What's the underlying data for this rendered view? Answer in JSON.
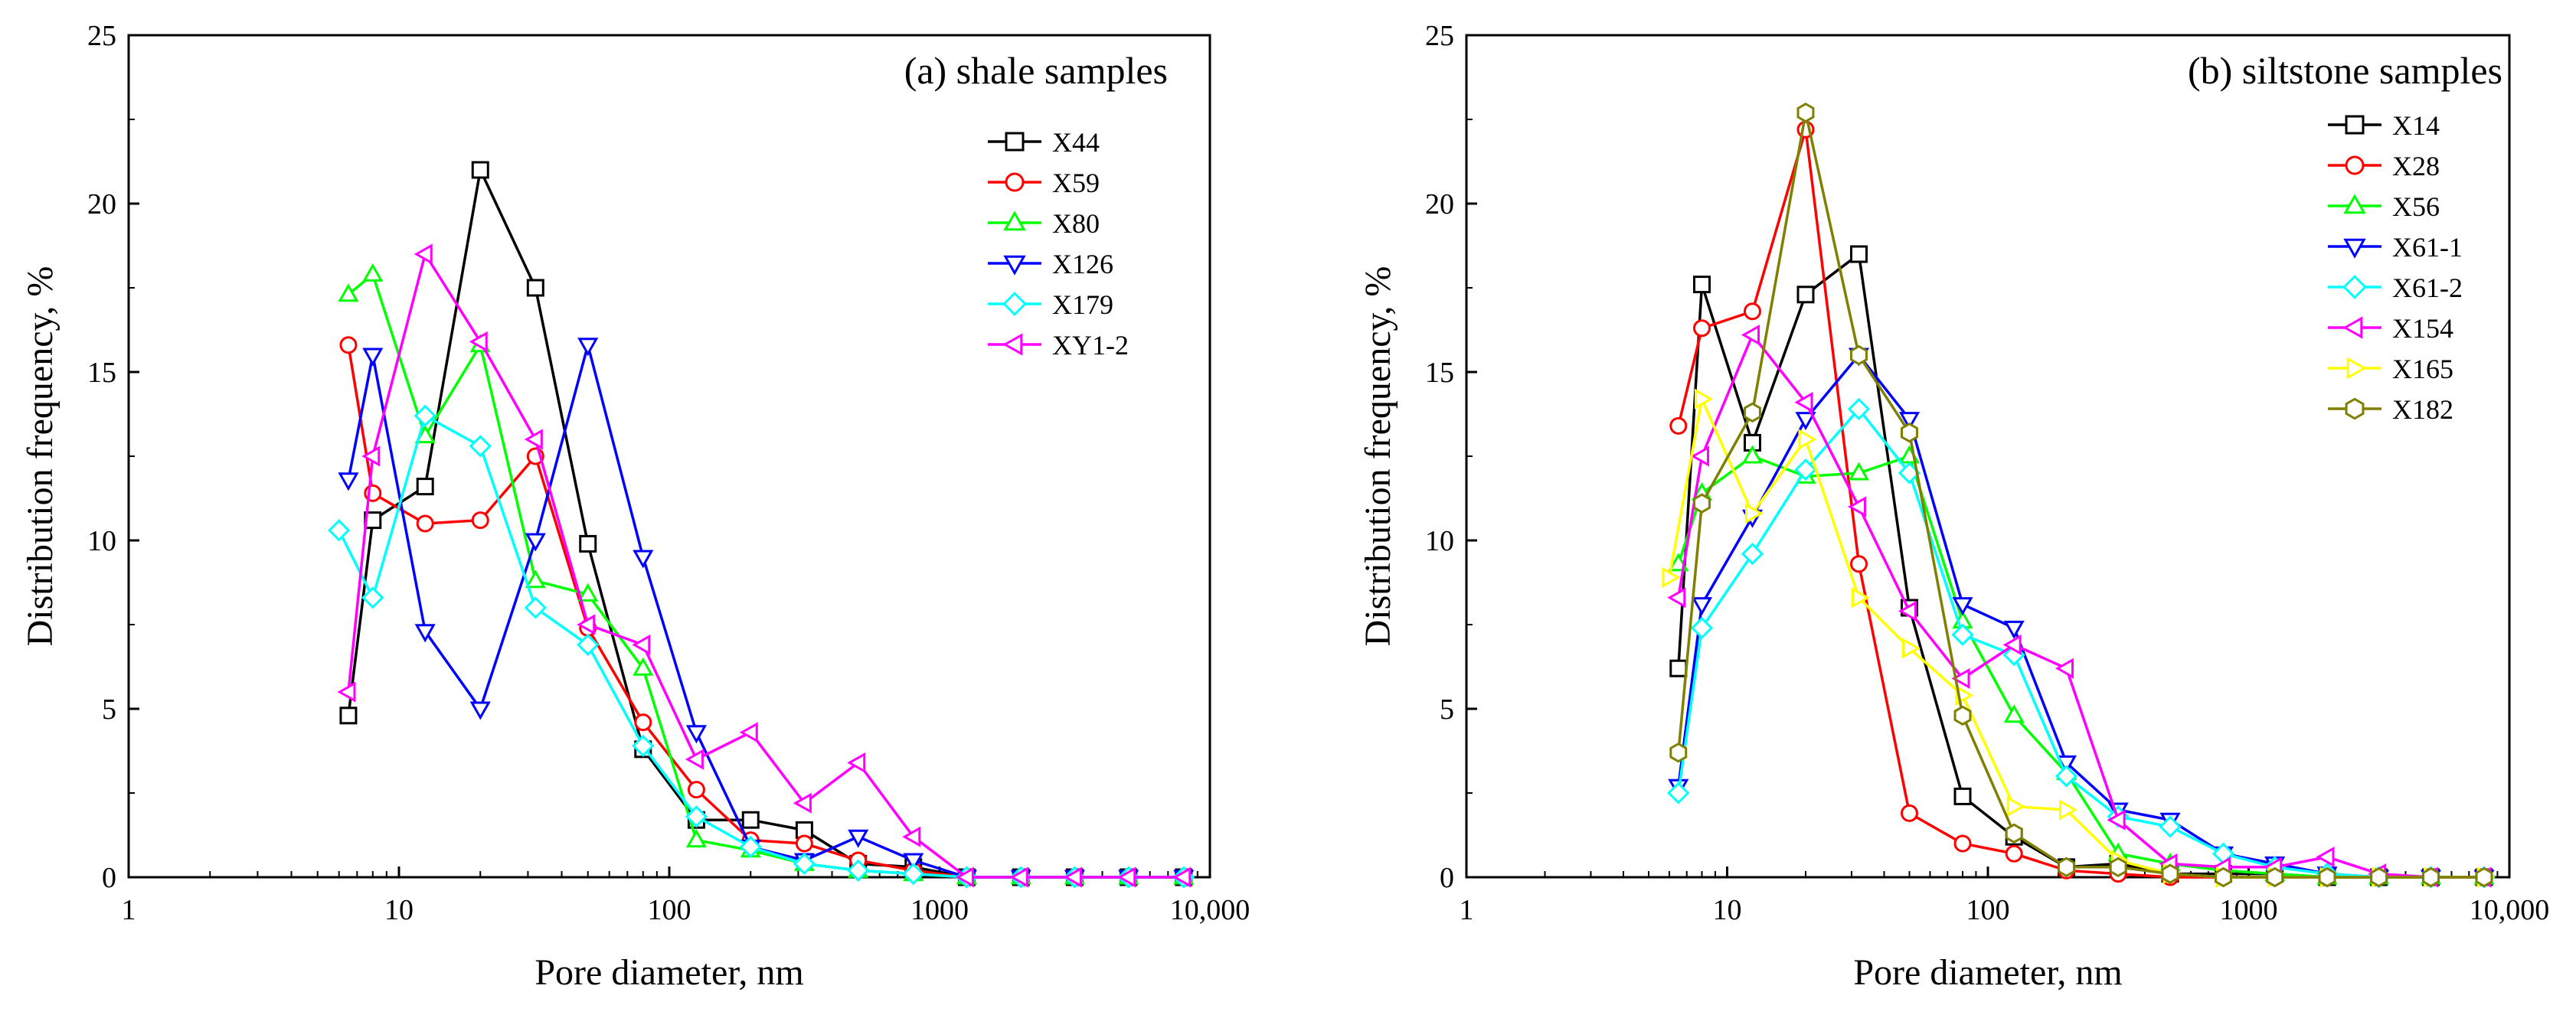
{
  "chart_data": [
    {
      "type": "line",
      "title": "(a) shale samples",
      "xlabel": "Pore diameter, nm",
      "ylabel": "Distribution frequency, %",
      "xscale": "log",
      "xlim": [
        1,
        10000
      ],
      "ylim": [
        0,
        25
      ],
      "xticks": [
        1,
        10,
        100,
        1000,
        10000
      ],
      "xtick_labels": [
        "1",
        "10",
        "100",
        "1000",
        "10,000"
      ],
      "yticks": [
        0,
        5,
        10,
        15,
        20,
        25
      ],
      "ytick_labels": [
        "0",
        "5",
        "10",
        "15",
        "20",
        "25"
      ],
      "grid": false,
      "legend_position": "right",
      "series": [
        {
          "name": "X44",
          "color": "#000000",
          "marker": "square",
          "x": [
            6.5,
            8,
            12.5,
            20,
            32,
            50,
            80,
            126,
            200,
            316,
            500,
            800,
            1260,
            2000,
            3160,
            5000,
            8000
          ],
          "y": [
            4.8,
            10.6,
            11.6,
            21.0,
            17.5,
            9.9,
            3.8,
            1.7,
            1.7,
            1.4,
            0.4,
            0.3,
            0,
            0,
            0,
            0,
            0
          ]
        },
        {
          "name": "X59",
          "color": "#ff0000",
          "marker": "circle",
          "x": [
            6.5,
            8,
            12.5,
            20,
            32,
            50,
            80,
            126,
            200,
            316,
            500,
            800,
            1260,
            2000,
            3160,
            5000,
            8000
          ],
          "y": [
            15.8,
            11.4,
            10.5,
            10.6,
            12.5,
            7.4,
            4.6,
            2.6,
            1.1,
            1.0,
            0.5,
            0.2,
            0,
            0,
            0,
            0,
            0
          ]
        },
        {
          "name": "X80",
          "color": "#00ff00",
          "marker": "triangle-up",
          "x": [
            6.5,
            8,
            12.5,
            20,
            32,
            50,
            80,
            126,
            200,
            316,
            500,
            800,
            1260,
            2000,
            3160,
            5000,
            8000
          ],
          "y": [
            17.3,
            17.9,
            13.1,
            15.8,
            8.8,
            8.4,
            6.2,
            1.1,
            0.8,
            0.4,
            0.2,
            0.1,
            0,
            0,
            0,
            0,
            0
          ]
        },
        {
          "name": "X126",
          "color": "#0000ff",
          "marker": "triangle-down",
          "x": [
            6.5,
            8,
            12.5,
            20,
            32,
            50,
            80,
            126,
            200,
            316,
            500,
            800,
            1260,
            2000,
            3160,
            5000,
            8000
          ],
          "y": [
            11.8,
            15.5,
            7.3,
            5.0,
            10.0,
            15.8,
            9.5,
            4.3,
            0.9,
            0.5,
            1.2,
            0.5,
            0,
            0,
            0,
            0,
            0
          ]
        },
        {
          "name": "X179",
          "color": "#00ffff",
          "marker": "diamond",
          "x": [
            6,
            8,
            12.5,
            20,
            32,
            50,
            80,
            126,
            200,
            316,
            500,
            800,
            1260,
            2000,
            3160,
            5000,
            8000
          ],
          "y": [
            10.3,
            8.3,
            13.7,
            12.8,
            8.0,
            6.9,
            3.9,
            1.8,
            0.9,
            0.4,
            0.2,
            0.1,
            0,
            0,
            0,
            0,
            0
          ]
        },
        {
          "name": "XY1-2",
          "color": "#ff00ff",
          "marker": "triangle-left",
          "x": [
            6.5,
            8,
            12.5,
            20,
            32,
            50,
            80,
            126,
            200,
            316,
            500,
            800,
            1260,
            2000,
            3160,
            5000,
            8000
          ],
          "y": [
            5.5,
            12.5,
            18.5,
            15.9,
            13.0,
            7.5,
            6.9,
            3.5,
            4.3,
            2.2,
            3.4,
            1.2,
            0,
            0,
            0,
            0,
            0
          ]
        }
      ]
    },
    {
      "type": "line",
      "title": "(b) siltstone samples",
      "xlabel": "Pore diameter, nm",
      "ylabel": "Distribution frequency, %",
      "xscale": "log",
      "xlim": [
        1,
        10000
      ],
      "ylim": [
        0,
        25
      ],
      "xticks": [
        1,
        10,
        100,
        1000,
        10000
      ],
      "xtick_labels": [
        "1",
        "10",
        "100",
        "1000",
        "10,000"
      ],
      "yticks": [
        0,
        5,
        10,
        15,
        20,
        25
      ],
      "ytick_labels": [
        "0",
        "5",
        "10",
        "15",
        "20",
        "25"
      ],
      "grid": false,
      "legend_position": "right",
      "series": [
        {
          "name": "X14",
          "color": "#000000",
          "marker": "square",
          "x": [
            6.5,
            8,
            12.5,
            20,
            32,
            50,
            80,
            126,
            200,
            316,
            500,
            800,
            1260,
            2000,
            3160,
            5000,
            8000
          ],
          "y": [
            6.2,
            17.6,
            12.9,
            17.3,
            18.5,
            8.0,
            2.4,
            1.2,
            0.3,
            0.4,
            0.1,
            0.1,
            0.1,
            0,
            0,
            0,
            0
          ]
        },
        {
          "name": "X28",
          "color": "#ff0000",
          "marker": "circle",
          "x": [
            6.5,
            8,
            12.5,
            20,
            32,
            50,
            80,
            126,
            200,
            316,
            500,
            800,
            1260,
            2000,
            3160,
            5000,
            8000
          ],
          "y": [
            13.4,
            16.3,
            16.8,
            22.2,
            9.3,
            1.9,
            1.0,
            0.7,
            0.2,
            0.1,
            0,
            0,
            0,
            0,
            0,
            0,
            0
          ]
        },
        {
          "name": "X56",
          "color": "#00ff00",
          "marker": "triangle-up",
          "x": [
            6.5,
            8,
            12.5,
            20,
            32,
            50,
            80,
            126,
            200,
            316,
            500,
            800,
            1260,
            2000,
            3160,
            5000,
            8000
          ],
          "y": [
            9.3,
            11.4,
            12.5,
            11.9,
            12.0,
            12.5,
            7.6,
            4.8,
            3.1,
            0.7,
            0.4,
            0.2,
            0.1,
            0,
            0,
            0,
            0
          ]
        },
        {
          "name": "X61-1",
          "color": "#0000ff",
          "marker": "triangle-down",
          "x": [
            6.5,
            8,
            12.5,
            20,
            32,
            50,
            80,
            126,
            200,
            316,
            500,
            800,
            1260,
            2000,
            3160,
            5000,
            8000
          ],
          "y": [
            2.7,
            8.1,
            10.7,
            13.6,
            15.5,
            13.6,
            8.1,
            7.4,
            3.4,
            2.0,
            1.7,
            0.7,
            0.4,
            0.1,
            0,
            0,
            0
          ]
        },
        {
          "name": "X61-2",
          "color": "#00ffff",
          "marker": "diamond",
          "x": [
            6.5,
            8,
            12.5,
            20,
            32,
            50,
            80,
            126,
            200,
            316,
            500,
            800,
            1260,
            2000,
            3160,
            5000,
            8000
          ],
          "y": [
            2.5,
            7.4,
            9.6,
            12.1,
            13.9,
            12.0,
            7.2,
            6.6,
            3.0,
            1.8,
            1.5,
            0.7,
            0.3,
            0.1,
            0,
            0,
            0
          ]
        },
        {
          "name": "X154",
          "color": "#ff00ff",
          "marker": "triangle-left",
          "x": [
            6.5,
            8,
            12.5,
            20,
            32,
            50,
            80,
            126,
            200,
            316,
            500,
            800,
            1260,
            2000,
            3160,
            5000,
            8000
          ],
          "y": [
            8.3,
            12.5,
            16.1,
            14.1,
            11.0,
            7.9,
            5.9,
            6.9,
            6.2,
            1.7,
            0.4,
            0.3,
            0.3,
            0.6,
            0.1,
            0,
            0
          ]
        },
        {
          "name": "X165",
          "color": "#ffff00",
          "marker": "triangle-right",
          "x": [
            6,
            8,
            12.5,
            20,
            32,
            50,
            80,
            126,
            200,
            316,
            500,
            800,
            1260,
            2000,
            3160,
            5000,
            8000
          ],
          "y": [
            8.9,
            14.2,
            10.8,
            13.0,
            8.3,
            6.8,
            5.4,
            2.1,
            2.0,
            0.5,
            0.1,
            0,
            0,
            0,
            0,
            0,
            0
          ]
        },
        {
          "name": "X182",
          "color": "#808000",
          "marker": "hexagon",
          "x": [
            6.5,
            8,
            12.5,
            20,
            32,
            50,
            80,
            126,
            200,
            316,
            500,
            800,
            1260,
            2000,
            3160,
            5000,
            8000
          ],
          "y": [
            3.7,
            11.1,
            13.8,
            22.7,
            15.5,
            13.2,
            4.8,
            1.3,
            0.3,
            0.3,
            0.1,
            0,
            0,
            0,
            0,
            0,
            0
          ]
        }
      ]
    }
  ]
}
